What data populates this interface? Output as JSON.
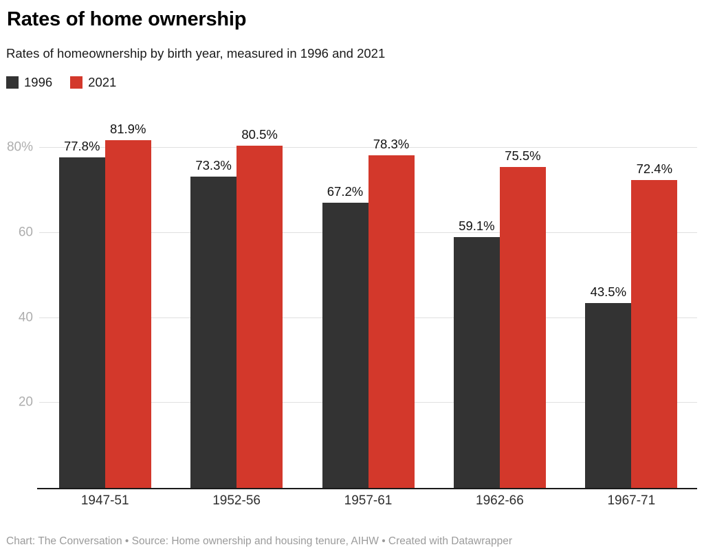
{
  "header": {
    "title": "Rates of home ownership",
    "subtitle": "Rates of homeownership by birth year, measured in 1996 and 2021"
  },
  "chart_data": {
    "type": "bar",
    "title": "Rates of home ownership",
    "subtitle": "Rates of homeownership by birth year, measured in 1996 and 2021",
    "categories": [
      "1947-51",
      "1952-56",
      "1957-61",
      "1962-66",
      "1967-71"
    ],
    "series": [
      {
        "name": "1996",
        "color": "#333333",
        "values": [
          77.8,
          73.3,
          67.2,
          59.1,
          43.5
        ]
      },
      {
        "name": "2021",
        "color": "#d3382b",
        "values": [
          81.9,
          80.5,
          78.3,
          75.5,
          72.4
        ]
      }
    ],
    "value_suffix": "%",
    "data_labels_shown": true,
    "yticks": [
      20,
      40,
      60,
      80
    ],
    "ytick_labels": [
      "20",
      "40",
      "60",
      "80%"
    ],
    "ylim": [
      0,
      88
    ],
    "grid": true,
    "grid_color": "#e0e0e0",
    "axis_line_color": "#1a1a1a",
    "tick_label_color": "#aeaeae",
    "legend_position": "top-left"
  },
  "footer": {
    "text": "Chart: The Conversation • Source: Home ownership and housing tenure, AIHW • Created with Datawrapper"
  }
}
